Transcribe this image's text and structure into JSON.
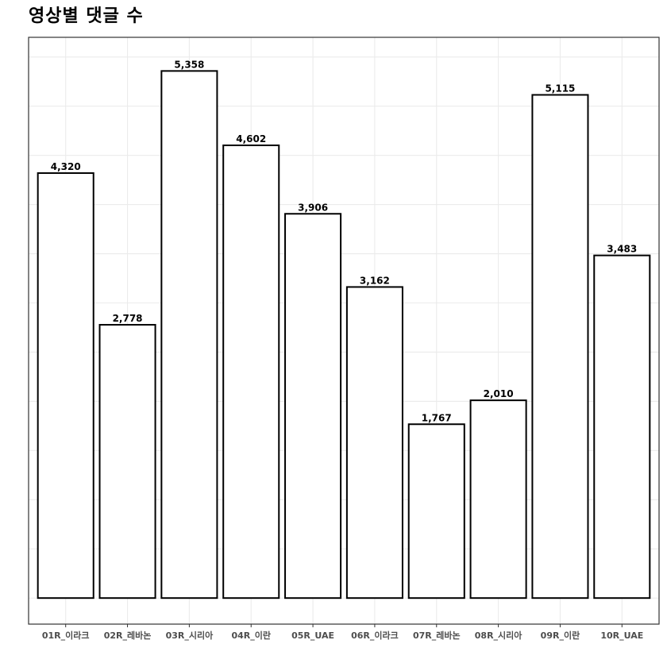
{
  "chart_data": {
    "type": "bar",
    "title": "영상별 댓글 수",
    "xlabel": "",
    "ylabel": "",
    "categories": [
      "01R_이라크",
      "02R_레바논",
      "03R_시리아",
      "04R_이란",
      "05R_UAE",
      "06R_이라크",
      "07R_레바논",
      "08R_시리아",
      "09R_이란",
      "10R_UAE"
    ],
    "values": [
      4320,
      2778,
      5358,
      4602,
      3906,
      3162,
      1767,
      2010,
      5115,
      3483
    ],
    "value_labels": [
      "4,320",
      "2,778",
      "5,358",
      "4,602",
      "3,906",
      "3,162",
      "1,767",
      "2,010",
      "5,115",
      "3,483"
    ],
    "ylim": [
      -265,
      5700
    ],
    "grid": true,
    "legend": "none",
    "colors": {
      "bar_fill": "#ffffff",
      "bar_stroke": "#000000",
      "grid": "#ebebeb",
      "panel_border": "#333333"
    }
  }
}
